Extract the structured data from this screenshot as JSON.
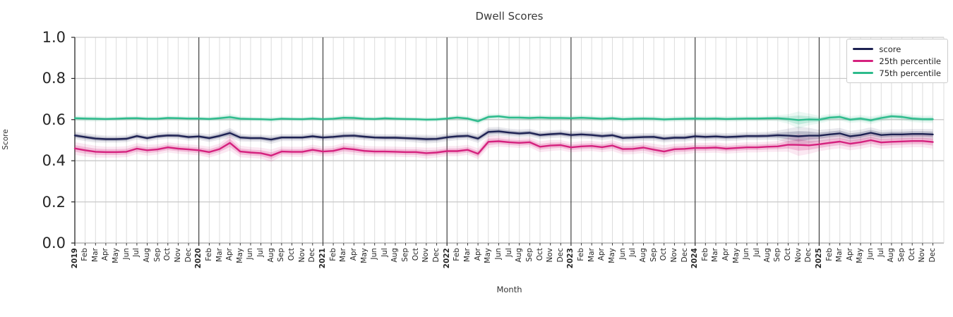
{
  "title": "Dwell Scores",
  "ylabel": "Score",
  "xlabel": "Month",
  "legend": [
    {
      "label": "score",
      "color": "#1d2152"
    },
    {
      "label": "25th percentile",
      "color": "#d5217e"
    },
    {
      "label": "75th percentile",
      "color": "#2dbb8c"
    }
  ],
  "chart_data": {
    "type": "line",
    "title": "Dwell Scores",
    "xlabel": "Month",
    "ylabel": "Score",
    "ylim": [
      0.0,
      1.0
    ],
    "yticks": [
      0.0,
      0.2,
      0.4,
      0.6,
      0.8,
      1.0
    ],
    "grid": true,
    "legend_position": "upper right",
    "x_labels": [
      "2019",
      "Feb",
      "Mar",
      "Apr",
      "May",
      "Jun",
      "Jul",
      "Aug",
      "Sep",
      "Oct",
      "Nov",
      "Dec",
      "2020",
      "Feb",
      "Mar",
      "Apr",
      "May",
      "Jun",
      "Jul",
      "Aug",
      "Sep",
      "Oct",
      "Nov",
      "Dec",
      "2021",
      "Feb",
      "Mar",
      "Apr",
      "May",
      "Jun",
      "Jul",
      "Aug",
      "Sep",
      "Oct",
      "Nov",
      "Dec",
      "2022",
      "Feb",
      "Mar",
      "Apr",
      "May",
      "Jun",
      "Jul",
      "Aug",
      "Sep",
      "Oct",
      "Nov",
      "Dec",
      "2023",
      "Feb",
      "Mar",
      "Apr",
      "May",
      "Jun",
      "Jul",
      "Aug",
      "Sep",
      "Oct",
      "Nov",
      "Dec",
      "2024",
      "Feb",
      "Mar",
      "Apr",
      "May",
      "Jun",
      "Jul",
      "Aug",
      "Sep",
      "Oct",
      "Nov",
      "Dec",
      "2025",
      "Feb",
      "Mar",
      "Apr",
      "May",
      "Jun",
      "Jul",
      "Aug",
      "Sep",
      "Oct",
      "Nov",
      "Dec"
    ],
    "year_boundaries": [
      12,
      24,
      36,
      48,
      60,
      72
    ],
    "series": [
      {
        "name": "score",
        "color": "#1d2152",
        "band_color": "29,33,82",
        "values": [
          0.523,
          0.515,
          0.508,
          0.505,
          0.505,
          0.507,
          0.52,
          0.51,
          0.519,
          0.523,
          0.522,
          0.515,
          0.518,
          0.51,
          0.521,
          0.535,
          0.513,
          0.51,
          0.51,
          0.503,
          0.513,
          0.513,
          0.513,
          0.519,
          0.513,
          0.516,
          0.521,
          0.522,
          0.517,
          0.513,
          0.512,
          0.512,
          0.51,
          0.508,
          0.505,
          0.506,
          0.514,
          0.519,
          0.521,
          0.508,
          0.54,
          0.543,
          0.537,
          0.533,
          0.536,
          0.525,
          0.529,
          0.532,
          0.525,
          0.528,
          0.525,
          0.52,
          0.524,
          0.511,
          0.513,
          0.515,
          0.516,
          0.508,
          0.512,
          0.512,
          0.519,
          0.516,
          0.518,
          0.515,
          0.517,
          0.52,
          0.52,
          0.521,
          0.524,
          0.522,
          0.519,
          0.522,
          0.522,
          0.528,
          0.533,
          0.519,
          0.525,
          0.536,
          0.525,
          0.528,
          0.528,
          0.53,
          0.53,
          0.528
        ],
        "band": [
          0.01,
          0.01,
          0.01,
          0.009,
          0.009,
          0.009,
          0.009,
          0.009,
          0.009,
          0.009,
          0.009,
          0.009,
          0.009,
          0.01,
          0.01,
          0.013,
          0.01,
          0.009,
          0.009,
          0.011,
          0.009,
          0.009,
          0.009,
          0.009,
          0.009,
          0.009,
          0.01,
          0.01,
          0.009,
          0.009,
          0.009,
          0.009,
          0.009,
          0.01,
          0.011,
          0.01,
          0.01,
          0.01,
          0.01,
          0.011,
          0.012,
          0.011,
          0.01,
          0.01,
          0.01,
          0.01,
          0.01,
          0.01,
          0.01,
          0.01,
          0.01,
          0.01,
          0.01,
          0.01,
          0.01,
          0.01,
          0.01,
          0.01,
          0.01,
          0.01,
          0.01,
          0.01,
          0.01,
          0.01,
          0.01,
          0.01,
          0.01,
          0.01,
          0.012,
          0.018,
          0.025,
          0.02,
          0.015,
          0.014,
          0.014,
          0.014,
          0.014,
          0.014,
          0.013,
          0.013,
          0.013,
          0.013,
          0.013,
          0.014
        ]
      },
      {
        "name": "25th percentile",
        "color": "#d5217e",
        "band_color": "213,33,126",
        "values": [
          0.46,
          0.451,
          0.444,
          0.442,
          0.442,
          0.444,
          0.459,
          0.451,
          0.455,
          0.465,
          0.459,
          0.455,
          0.451,
          0.442,
          0.457,
          0.487,
          0.445,
          0.44,
          0.437,
          0.425,
          0.445,
          0.443,
          0.443,
          0.453,
          0.445,
          0.448,
          0.46,
          0.455,
          0.448,
          0.445,
          0.445,
          0.444,
          0.442,
          0.442,
          0.437,
          0.44,
          0.447,
          0.447,
          0.453,
          0.434,
          0.492,
          0.495,
          0.49,
          0.487,
          0.49,
          0.468,
          0.474,
          0.476,
          0.465,
          0.47,
          0.472,
          0.466,
          0.474,
          0.457,
          0.458,
          0.464,
          0.454,
          0.445,
          0.456,
          0.458,
          0.462,
          0.462,
          0.464,
          0.459,
          0.462,
          0.465,
          0.465,
          0.468,
          0.47,
          0.478,
          0.477,
          0.475,
          0.48,
          0.487,
          0.493,
          0.483,
          0.49,
          0.5,
          0.489,
          0.492,
          0.494,
          0.496,
          0.496,
          0.491
        ],
        "band": [
          0.016,
          0.016,
          0.015,
          0.014,
          0.014,
          0.014,
          0.014,
          0.014,
          0.013,
          0.013,
          0.013,
          0.013,
          0.013,
          0.014,
          0.014,
          0.02,
          0.015,
          0.014,
          0.014,
          0.016,
          0.013,
          0.013,
          0.013,
          0.013,
          0.013,
          0.013,
          0.014,
          0.014,
          0.013,
          0.013,
          0.013,
          0.013,
          0.013,
          0.013,
          0.014,
          0.013,
          0.013,
          0.013,
          0.013,
          0.014,
          0.016,
          0.014,
          0.013,
          0.013,
          0.013,
          0.014,
          0.014,
          0.013,
          0.013,
          0.013,
          0.013,
          0.013,
          0.014,
          0.014,
          0.014,
          0.014,
          0.015,
          0.016,
          0.014,
          0.014,
          0.013,
          0.013,
          0.013,
          0.013,
          0.013,
          0.013,
          0.013,
          0.013,
          0.014,
          0.018,
          0.028,
          0.022,
          0.018,
          0.017,
          0.017,
          0.017,
          0.017,
          0.017,
          0.016,
          0.016,
          0.016,
          0.016,
          0.016,
          0.017
        ]
      },
      {
        "name": "75th percentile",
        "color": "#2dbb8c",
        "band_color": "45,187,140",
        "values": [
          0.607,
          0.605,
          0.604,
          0.603,
          0.604,
          0.606,
          0.607,
          0.604,
          0.604,
          0.608,
          0.607,
          0.605,
          0.605,
          0.603,
          0.607,
          0.612,
          0.604,
          0.603,
          0.602,
          0.6,
          0.604,
          0.603,
          0.602,
          0.605,
          0.602,
          0.604,
          0.609,
          0.608,
          0.604,
          0.603,
          0.606,
          0.604,
          0.603,
          0.602,
          0.6,
          0.601,
          0.605,
          0.61,
          0.605,
          0.592,
          0.613,
          0.616,
          0.61,
          0.61,
          0.608,
          0.61,
          0.608,
          0.608,
          0.607,
          0.609,
          0.607,
          0.604,
          0.607,
          0.602,
          0.604,
          0.605,
          0.604,
          0.601,
          0.603,
          0.604,
          0.605,
          0.604,
          0.605,
          0.603,
          0.604,
          0.605,
          0.605,
          0.606,
          0.607,
          0.603,
          0.598,
          0.601,
          0.6,
          0.61,
          0.613,
          0.6,
          0.605,
          0.597,
          0.608,
          0.616,
          0.613,
          0.605,
          0.602,
          0.602
        ],
        "band": [
          0.007,
          0.007,
          0.007,
          0.006,
          0.006,
          0.006,
          0.006,
          0.006,
          0.006,
          0.006,
          0.006,
          0.006,
          0.006,
          0.006,
          0.007,
          0.009,
          0.007,
          0.006,
          0.006,
          0.007,
          0.006,
          0.006,
          0.006,
          0.006,
          0.006,
          0.006,
          0.007,
          0.007,
          0.006,
          0.006,
          0.006,
          0.006,
          0.006,
          0.006,
          0.006,
          0.006,
          0.006,
          0.007,
          0.007,
          0.008,
          0.008,
          0.007,
          0.007,
          0.007,
          0.007,
          0.007,
          0.007,
          0.007,
          0.007,
          0.007,
          0.007,
          0.007,
          0.007,
          0.007,
          0.007,
          0.007,
          0.007,
          0.007,
          0.007,
          0.007,
          0.007,
          0.007,
          0.007,
          0.007,
          0.007,
          0.007,
          0.007,
          0.007,
          0.008,
          0.012,
          0.022,
          0.015,
          0.01,
          0.009,
          0.009,
          0.009,
          0.009,
          0.01,
          0.009,
          0.009,
          0.009,
          0.009,
          0.009,
          0.01
        ]
      }
    ]
  }
}
